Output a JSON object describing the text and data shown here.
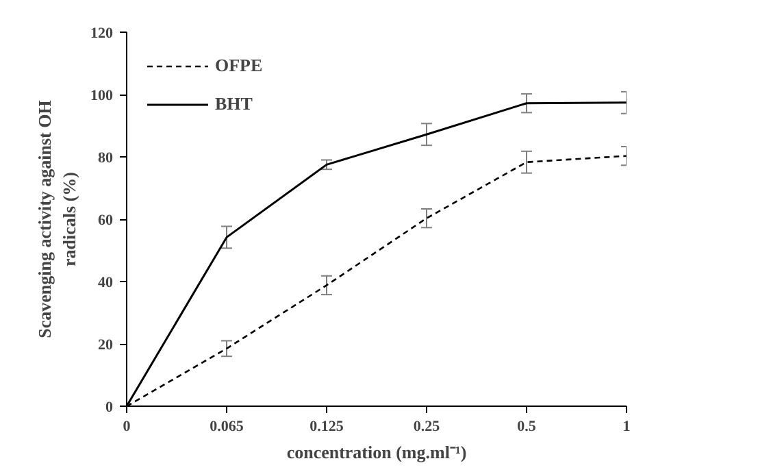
{
  "chart_data": {
    "type": "line",
    "categories": [
      "0",
      "0.065",
      "0.125",
      "0.25",
      "0.5",
      "1"
    ],
    "xlabel": "concentration (mg.ml⁻¹)",
    "ylabel": "Scavenging activity against OH\nradicals (%)",
    "ylim": [
      0,
      120
    ],
    "yticks": [
      0,
      20,
      40,
      60,
      80,
      100,
      120
    ],
    "series": [
      {
        "name": "OFPE",
        "color": "#000000",
        "line_style": "dashed",
        "values": [
          0,
          18.5,
          38.8,
          60.3,
          78.3,
          80.3
        ],
        "errors": [
          null,
          2.5,
          3,
          3,
          3.5,
          3
        ]
      },
      {
        "name": "BHT",
        "color": "#000000",
        "line_style": "solid",
        "values": [
          0,
          54.2,
          77.5,
          87.2,
          97.2,
          97.4
        ],
        "errors": [
          null,
          3.5,
          1.5,
          3.5,
          3,
          3.5
        ]
      }
    ],
    "legend": "top left",
    "grid": false,
    "marker": "none"
  }
}
